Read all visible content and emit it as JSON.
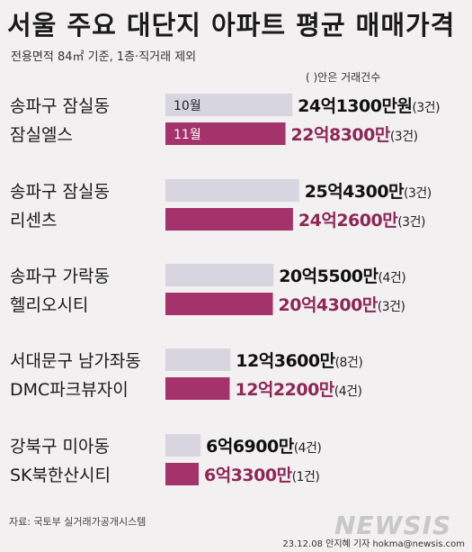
{
  "title": "서울 주요 대단지 아파트 평균 매매가격",
  "subtitle": "전용면적 84㎡ 기준, 1층·직거래 제외",
  "legend_note": "( )안은 거래건수",
  "source": "자료: 국토부 실거래가공개시스템",
  "watermark": "NEWSIS",
  "credit": "23.12.08 안지혜 기자 hokma@newsis.com",
  "colors": {
    "oct": "#d7d6e0",
    "nov": "#a3336a",
    "oct_text": "#111111",
    "nov_text": "#8c2757"
  },
  "chart_data": {
    "type": "bar",
    "orientation": "horizontal",
    "unit": "억원",
    "categories": [
      {
        "area": "송파구 잠실동",
        "name": "잠실엘스"
      },
      {
        "area": "송파구 잠실동",
        "name": "리센츠"
      },
      {
        "area": "송파구 가락동",
        "name": "헬리오시티"
      },
      {
        "area": "서대문구 남가좌동",
        "name": "DMC파크뷰자이"
      },
      {
        "area": "강북구 미아동",
        "name": "SK북한산시티"
      }
    ],
    "series": [
      {
        "name": "10월",
        "values": [
          24.13,
          25.43,
          20.55,
          12.36,
          6.69
        ],
        "labels": [
          "24억1300만원",
          "25억4300만",
          "20억5500만",
          "12억3600만",
          "6억6900만"
        ],
        "counts": [
          "(3건)",
          "(3건)",
          "(4건)",
          "(8건)",
          "(4건)"
        ]
      },
      {
        "name": "11월",
        "values": [
          22.83,
          24.26,
          20.43,
          12.22,
          6.33
        ],
        "labels": [
          "22억8300만",
          "24억2600만",
          "20억4300만",
          "12억2200만",
          "6억3300만"
        ],
        "counts": [
          "(3건)",
          "(3건)",
          "(3건)",
          "(4건)",
          "(1건)"
        ]
      }
    ]
  }
}
